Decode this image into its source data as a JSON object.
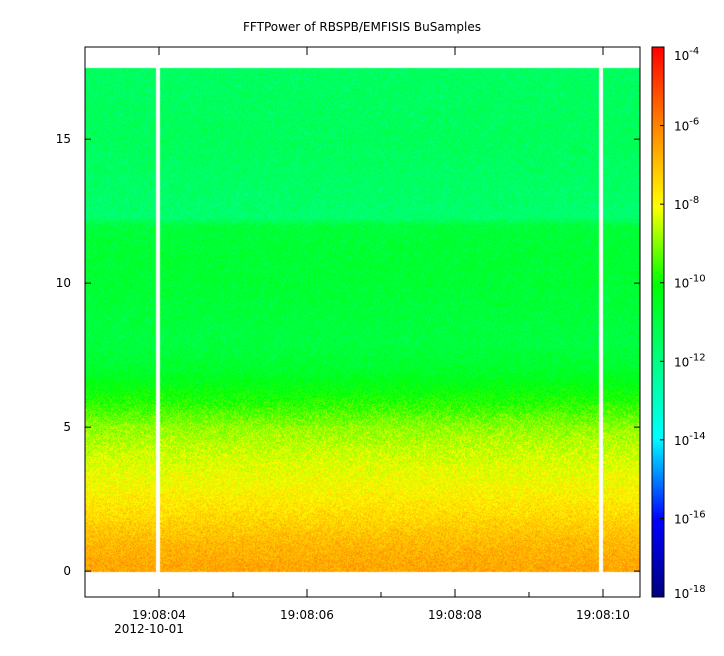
{
  "chart_data": {
    "type": "heatmap",
    "title": "FFTPower of RBSPB/EMFISIS  BuSamples",
    "xlabel": "",
    "ylabel": "",
    "x_range": [
      "19:08:03",
      "19:08:10.5"
    ],
    "x_ticks": [
      {
        "value": "19:08:04",
        "sublabel": "2012-10-01"
      },
      {
        "value": "19:08:06",
        "sublabel": ""
      },
      {
        "value": "19:08:08",
        "sublabel": ""
      },
      {
        "value": "19:08:10",
        "sublabel": ""
      }
    ],
    "x_minor_tick_step_s": 1,
    "ylim": [
      -0.9,
      18.2
    ],
    "y_ticks": [
      0,
      5,
      10,
      15
    ],
    "data_y_extent": [
      0,
      17.5
    ],
    "data_gaps": [
      "19:08:03.98",
      "19:08:09.96"
    ],
    "colorbar": {
      "scale": "log",
      "range": [
        -18,
        -4
      ],
      "ticks": [
        {
          "exp": -4,
          "label": "10",
          "sup": "-4"
        },
        {
          "exp": -6,
          "label": "10",
          "sup": "-6"
        },
        {
          "exp": -8,
          "label": "10",
          "sup": "-8"
        },
        {
          "exp": -10,
          "label": "10",
          "sup": "-10"
        },
        {
          "exp": -12,
          "label": "10",
          "sup": "-12"
        },
        {
          "exp": -14,
          "label": "10",
          "sup": "-14"
        },
        {
          "exp": -16,
          "label": "10",
          "sup": "-16"
        },
        {
          "exp": -18,
          "label": "10",
          "sup": "-18"
        }
      ],
      "colormap": [
        "#000080",
        "#0000ff",
        "#00ffff",
        "#00ff00",
        "#ffff00",
        "#ff8000",
        "#ff0000"
      ]
    },
    "power_profile": [
      {
        "y": 0.2,
        "log10_power": -6.6
      },
      {
        "y": 1.0,
        "log10_power": -6.9
      },
      {
        "y": 2.0,
        "log10_power": -7.5
      },
      {
        "y": 3.0,
        "log10_power": -8.0
      },
      {
        "y": 4.0,
        "log10_power": -8.4
      },
      {
        "y": 5.0,
        "log10_power": -8.9
      },
      {
        "y": 6.0,
        "log10_power": -9.9
      },
      {
        "y": 7.0,
        "log10_power": -10.7
      },
      {
        "y": 8.0,
        "log10_power": -11.0
      },
      {
        "y": 9.0,
        "log10_power": -10.9
      },
      {
        "y": 10.0,
        "log10_power": -10.8
      },
      {
        "y": 11.0,
        "log10_power": -10.8
      },
      {
        "y": 12.0,
        "log10_power": -10.9
      },
      {
        "y": 12.3,
        "log10_power": -11.7
      },
      {
        "y": 13.0,
        "log10_power": -11.6
      },
      {
        "y": 15.0,
        "log10_power": -11.4
      },
      {
        "y": 17.5,
        "log10_power": -11.5
      }
    ]
  }
}
